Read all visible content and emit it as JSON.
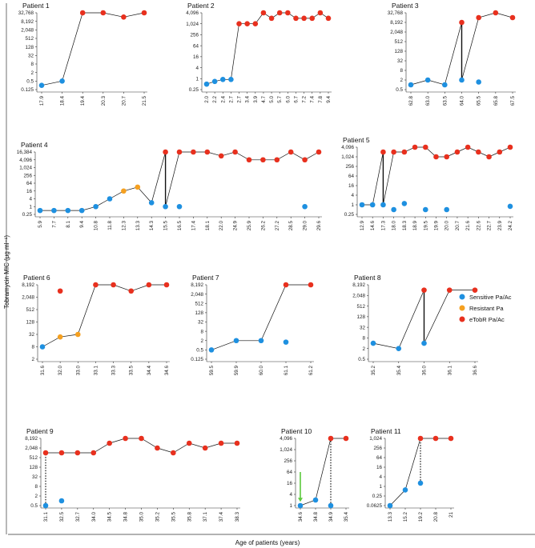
{
  "figure": {
    "ylabel": "Tobramycin MIC (μg ml⁻¹)",
    "xlabel": "Age of patients (years)",
    "legend": [
      {
        "label": "Sensitive Pa/Ac",
        "color": "#1e90e0"
      },
      {
        "label": "Resistant Pa",
        "color": "#f5a020"
      },
      {
        "label": "eTobR Pa/Ac",
        "color": "#e8301e"
      }
    ],
    "arrow_color": "#5cc93c"
  },
  "chart_data": [
    {
      "type": "scatter",
      "title": "Patient 1",
      "x": [
        "17.9",
        "18.4",
        "19.4",
        "20.3",
        "20.7",
        "21.5"
      ],
      "yticks": [
        "0.125",
        "0.5",
        "2",
        "8",
        "32",
        "128",
        "512",
        "2,048",
        "8,192",
        "32,768"
      ],
      "points": [
        [
          0,
          0.25,
          "s"
        ],
        [
          1,
          0.5,
          "s"
        ],
        [
          2,
          32768,
          "e"
        ],
        [
          3,
          32768,
          "e"
        ],
        [
          4,
          16384,
          "e"
        ],
        [
          5,
          32768,
          "e"
        ]
      ],
      "lines": [
        {
          "seq": [
            0,
            1,
            2,
            3,
            4,
            5
          ]
        }
      ]
    },
    {
      "type": "scatter",
      "title": "Patient 2",
      "x": [
        "2.0",
        "2.2",
        "2.4",
        "2.7",
        "2.7",
        "3.4",
        "3.9",
        "4.7",
        "5.0",
        "5.7",
        "6.0",
        "6.7",
        "7.2",
        "7.4",
        "7.8",
        "9.4"
      ],
      "yticks": [
        "0.25",
        "1",
        "4",
        "16",
        "64",
        "256",
        "1,024",
        "4,096"
      ],
      "points": [
        [
          0,
          0.5,
          "s"
        ],
        [
          1,
          0.7,
          "s"
        ],
        [
          2,
          0.9,
          "s"
        ],
        [
          3,
          0.9,
          "s"
        ],
        [
          4,
          1024,
          "e"
        ],
        [
          5,
          1024,
          "e"
        ],
        [
          6,
          1024,
          "e"
        ],
        [
          7,
          4096,
          "e"
        ],
        [
          8,
          2048,
          "e"
        ],
        [
          9,
          4096,
          "e"
        ],
        [
          10,
          4096,
          "e"
        ],
        [
          11,
          2048,
          "e"
        ],
        [
          12,
          2048,
          "e"
        ],
        [
          13,
          2048,
          "e"
        ],
        [
          14,
          4096,
          "e"
        ],
        [
          15,
          2048,
          "e"
        ]
      ],
      "lines": [
        {
          "seq": [
            0,
            1,
            2,
            3,
            4,
            5,
            6,
            7,
            8,
            9,
            10,
            11,
            12,
            13,
            14,
            15
          ]
        }
      ]
    },
    {
      "type": "scatter",
      "title": "Patient 3",
      "x": [
        "62.8",
        "63.0",
        "63.5",
        "64.0",
        "65.5",
        "65.8",
        "67.5"
      ],
      "yticks": [
        "0.5",
        "2",
        "8",
        "32",
        "128",
        "512",
        "2,048",
        "8,192",
        "32,768"
      ],
      "points": [
        [
          0,
          1,
          "s"
        ],
        [
          1,
          2,
          "s"
        ],
        [
          2,
          1,
          "s"
        ],
        [
          3,
          2,
          "s"
        ],
        [
          3,
          8192,
          "e"
        ],
        [
          4,
          1.5,
          "s"
        ],
        [
          4,
          16384,
          "e"
        ],
        [
          5,
          32768,
          "e"
        ],
        [
          6,
          16384,
          "e"
        ]
      ],
      "lines": [
        {
          "seq": [
            0,
            1,
            2,
            3
          ]
        },
        {
          "seq": [
            3,
            4,
            5,
            6
          ],
          "y0": 2
        }
      ]
    },
    {
      "type": "scatter",
      "title": "Patient 4",
      "x": [
        "5.9",
        "7.7",
        "8.1",
        "9.4",
        "10.8",
        "11.8",
        "12.3",
        "13.3",
        "14.3",
        "15.5",
        "16.5",
        "17.4",
        "18.1",
        "22.0",
        "24.9",
        "25.9",
        "26.2",
        "27.2",
        "28.5",
        "29.0",
        "29.6"
      ],
      "yticks": [
        "0.25",
        "1",
        "4",
        "16",
        "64",
        "256",
        "1,024",
        "4,096",
        "16,384"
      ],
      "points": [
        [
          0,
          0.5,
          "s"
        ],
        [
          1,
          0.5,
          "s"
        ],
        [
          2,
          0.5,
          "s"
        ],
        [
          3,
          0.5,
          "s"
        ],
        [
          4,
          1,
          "s"
        ],
        [
          5,
          4,
          "s"
        ],
        [
          6,
          16,
          "r"
        ],
        [
          7,
          32,
          "r"
        ],
        [
          8,
          2,
          "s"
        ],
        [
          9,
          1,
          "s"
        ],
        [
          9,
          16384,
          "e"
        ],
        [
          10,
          1,
          "s"
        ],
        [
          10,
          16384,
          "e"
        ],
        [
          11,
          16384,
          "e"
        ],
        [
          12,
          16384,
          "e"
        ],
        [
          13,
          8192,
          "e"
        ],
        [
          14,
          16384,
          "e"
        ],
        [
          15,
          4096,
          "e"
        ],
        [
          16,
          4096,
          "e"
        ],
        [
          17,
          4096,
          "e"
        ],
        [
          18,
          16384,
          "e"
        ],
        [
          19,
          1,
          "s"
        ],
        [
          19,
          4096,
          "e"
        ],
        [
          20,
          16384,
          "e"
        ]
      ],
      "lines": [
        {
          "seq": [
            0,
            1,
            2,
            3,
            4,
            5,
            6,
            7,
            8,
            9
          ]
        },
        {
          "seq": [
            9,
            10,
            11,
            12,
            13,
            14,
            15,
            16,
            17,
            18,
            19,
            20
          ],
          "y0": 1
        }
      ]
    },
    {
      "type": "scatter",
      "title": "Patient 5",
      "x": [
        "12.9",
        "14.6",
        "17.3",
        "18.0",
        "18.3",
        "18.9",
        "19.5",
        "19.9",
        "20.0",
        "20.7",
        "21.6",
        "22.6",
        "22.7",
        "23.9",
        "24.2"
      ],
      "yticks": [
        "0.25",
        "1",
        "4",
        "16",
        "64",
        "256",
        "1,024",
        "4,096"
      ],
      "points": [
        [
          0,
          1,
          "s"
        ],
        [
          1,
          1,
          "s"
        ],
        [
          2,
          1,
          "s"
        ],
        [
          2,
          2048,
          "e"
        ],
        [
          3,
          0.5,
          "s"
        ],
        [
          3,
          2048,
          "e"
        ],
        [
          4,
          1.2,
          "s"
        ],
        [
          4,
          2048,
          "e"
        ],
        [
          5,
          4096,
          "e"
        ],
        [
          6,
          0.5,
          "s"
        ],
        [
          6,
          4096,
          "e"
        ],
        [
          7,
          1024,
          "e"
        ],
        [
          8,
          0.5,
          "s"
        ],
        [
          8,
          1024,
          "e"
        ],
        [
          9,
          2048,
          "e"
        ],
        [
          10,
          4096,
          "e"
        ],
        [
          11,
          2048,
          "e"
        ],
        [
          12,
          1024,
          "e"
        ],
        [
          13,
          2048,
          "e"
        ],
        [
          14,
          0.8,
          "s"
        ],
        [
          14,
          4096,
          "e"
        ]
      ],
      "lines": [
        {
          "seq": [
            0,
            1,
            2
          ]
        },
        {
          "seq": [
            2,
            3,
            4,
            5,
            6,
            7,
            8,
            9,
            10,
            11,
            12,
            13,
            14
          ],
          "y0": 1
        }
      ]
    },
    {
      "type": "scatter",
      "title": "Patient 6",
      "x": [
        "31.6",
        "32.0",
        "33.0",
        "33.1",
        "33.3",
        "33.5",
        "34.4",
        "34.6"
      ],
      "yticks": [
        "2",
        "8",
        "32",
        "128",
        "512",
        "2,048",
        "8,192"
      ],
      "points": [
        [
          0,
          8,
          "s"
        ],
        [
          1,
          24,
          "r"
        ],
        [
          1,
          4096,
          "e"
        ],
        [
          2,
          32,
          "r"
        ],
        [
          3,
          8192,
          "e"
        ],
        [
          4,
          8192,
          "e"
        ],
        [
          5,
          4096,
          "e"
        ],
        [
          6,
          8192,
          "e"
        ],
        [
          7,
          8192,
          "e"
        ]
      ],
      "lines": [
        {
          "seq": [
            0,
            1,
            2,
            3,
            4,
            5,
            6,
            7
          ],
          "ymap": {
            "1": 24,
            "2": 32
          }
        }
      ]
    },
    {
      "type": "scatter",
      "title": "Patient 7",
      "x": [
        "59.5",
        "59.9",
        "60.0",
        "61.1",
        "61.2"
      ],
      "yticks": [
        "0.125",
        "0.5",
        "2",
        "8",
        "32",
        "128",
        "512",
        "2,048",
        "8,192"
      ],
      "points": [
        [
          0,
          0.5,
          "s"
        ],
        [
          1,
          2,
          "s"
        ],
        [
          2,
          2,
          "s"
        ],
        [
          3,
          1.6,
          "s"
        ],
        [
          3,
          8192,
          "e"
        ],
        [
          4,
          8192,
          "e"
        ]
      ],
      "lines": [
        {
          "seq": [
            0,
            1,
            2,
            3,
            4
          ],
          "ymap": {
            "2": 2,
            "3": 8192
          }
        }
      ]
    },
    {
      "type": "scatter",
      "title": "Patient 8",
      "x": [
        "35.2",
        "35.4",
        "36.0",
        "36.1",
        "36.6"
      ],
      "yticks": [
        "0.5",
        "2",
        "8",
        "32",
        "128",
        "512",
        "2,048",
        "8,192"
      ],
      "points": [
        [
          0,
          4,
          "s"
        ],
        [
          1,
          2,
          "s"
        ],
        [
          2,
          4,
          "s"
        ],
        [
          2,
          4096,
          "e"
        ],
        [
          3,
          4096,
          "e"
        ],
        [
          4,
          4096,
          "e"
        ]
      ],
      "lines": [
        {
          "seq": [
            0,
            1,
            2
          ]
        },
        {
          "seq": [
            2,
            3,
            4
          ],
          "y0": 4
        }
      ]
    },
    {
      "type": "scatter",
      "title": "Patient 9",
      "x": [
        "31.1",
        "32.5",
        "32.7",
        "34.0",
        "34.5",
        "34.8",
        "35.0",
        "35.2",
        "35.5",
        "35.8",
        "37.1",
        "37.4",
        "38.3"
      ],
      "yticks": [
        "0.5",
        "2",
        "8",
        "32",
        "128",
        "512",
        "2,048",
        "8,192"
      ],
      "points": [
        [
          0,
          0.5,
          "s"
        ],
        [
          0,
          1024,
          "e"
        ],
        [
          1,
          1,
          "s"
        ],
        [
          1,
          1024,
          "e"
        ],
        [
          2,
          1024,
          "e"
        ],
        [
          3,
          1024,
          "e"
        ],
        [
          4,
          4096,
          "e"
        ],
        [
          5,
          8192,
          "e"
        ],
        [
          6,
          8192,
          "e"
        ],
        [
          7,
          2048,
          "e"
        ],
        [
          8,
          1024,
          "e"
        ],
        [
          9,
          4096,
          "e"
        ],
        [
          10,
          2048,
          "e"
        ],
        [
          11,
          4096,
          "e"
        ],
        [
          12,
          4096,
          "e"
        ]
      ],
      "lines": [
        {
          "seq": [
            0,
            1,
            2,
            3,
            4,
            5,
            6,
            7,
            8,
            9,
            10,
            11,
            12
          ],
          "y0": 1024
        }
      ],
      "dotted": [
        [
          0,
          0.5,
          1024
        ]
      ]
    },
    {
      "type": "scatter",
      "title": "Patient 10",
      "x": [
        "34.6",
        "34.8",
        "34.9",
        "35.4"
      ],
      "yticks": [
        "1",
        "4",
        "16",
        "64",
        "256",
        "1,024",
        "4,096"
      ],
      "points": [
        [
          0,
          1,
          "s"
        ],
        [
          1,
          2,
          "s"
        ],
        [
          2,
          1,
          "s"
        ],
        [
          2,
          4096,
          "e"
        ],
        [
          3,
          4096,
          "e"
        ]
      ],
      "lines": [
        {
          "seq": [
            0,
            1,
            2
          ]
        },
        {
          "seq": [
            2,
            3
          ],
          "y0": 4096
        }
      ],
      "dotted": [
        [
          2,
          1,
          4096
        ]
      ],
      "arrow": [
        0,
        64,
        1.6
      ]
    },
    {
      "type": "scatter",
      "title": "Patient 11",
      "x": [
        "13.3",
        "15.2",
        "19.2",
        "20.8",
        "21"
      ],
      "yticks": [
        "0.0625",
        "0.25",
        "1",
        "4",
        "16",
        "64",
        "256",
        "1,024"
      ],
      "points": [
        [
          0,
          0.0625,
          "s"
        ],
        [
          1,
          0.6,
          "s"
        ],
        [
          2,
          1.6,
          "s"
        ],
        [
          2,
          1024,
          "e"
        ],
        [
          3,
          1024,
          "e"
        ],
        [
          4,
          1024,
          "e"
        ]
      ],
      "lines": [
        {
          "seq": [
            0,
            1,
            2
          ]
        },
        {
          "seq": [
            2,
            3,
            4
          ],
          "y0": 1024
        }
      ],
      "dotted": [
        [
          2,
          1.6,
          1024
        ]
      ]
    }
  ]
}
